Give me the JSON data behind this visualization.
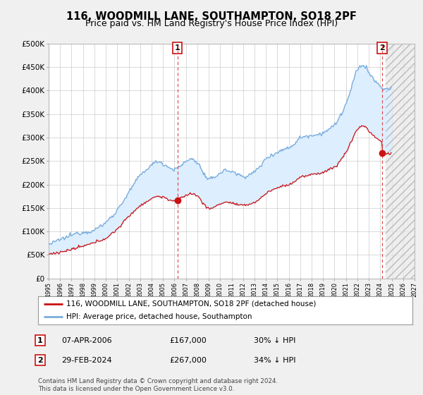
{
  "title": "116, WOODMILL LANE, SOUTHAMPTON, SO18 2PF",
  "subtitle": "Price paid vs. HM Land Registry's House Price Index (HPI)",
  "title_fontsize": 10.5,
  "subtitle_fontsize": 9,
  "ylabel_ticks": [
    "£0",
    "£50K",
    "£100K",
    "£150K",
    "£200K",
    "£250K",
    "£300K",
    "£350K",
    "£400K",
    "£450K",
    "£500K"
  ],
  "ytick_values": [
    0,
    50000,
    100000,
    150000,
    200000,
    250000,
    300000,
    350000,
    400000,
    450000,
    500000
  ],
  "ylim": [
    0,
    500000
  ],
  "xlim_start": 1995.5,
  "xlim_end": 2027.0,
  "marker1_x": 2006.27,
  "marker1_y": 167000,
  "marker2_x": 2024.17,
  "marker2_y": 267000,
  "vline_color": "#dd4444",
  "hpi_line_color": "#7aaddd",
  "sold_line_color": "#cc1111",
  "fill_color": "#ddeeff",
  "legend_label1": "116, WOODMILL LANE, SOUTHAMPTON, SO18 2PF (detached house)",
  "legend_label2": "HPI: Average price, detached house, Southampton",
  "table_rows": [
    {
      "num": "1",
      "date": "07-APR-2006",
      "price": "£167,000",
      "hpi": "30% ↓ HPI"
    },
    {
      "num": "2",
      "date": "29-FEB-2024",
      "price": "£267,000",
      "hpi": "34% ↓ HPI"
    }
  ],
  "footnote": "Contains HM Land Registry data © Crown copyright and database right 2024.\nThis data is licensed under the Open Government Licence v3.0.",
  "background_color": "#f0f0f0",
  "plot_bg_color": "#ffffff",
  "grid_color": "#cccccc"
}
